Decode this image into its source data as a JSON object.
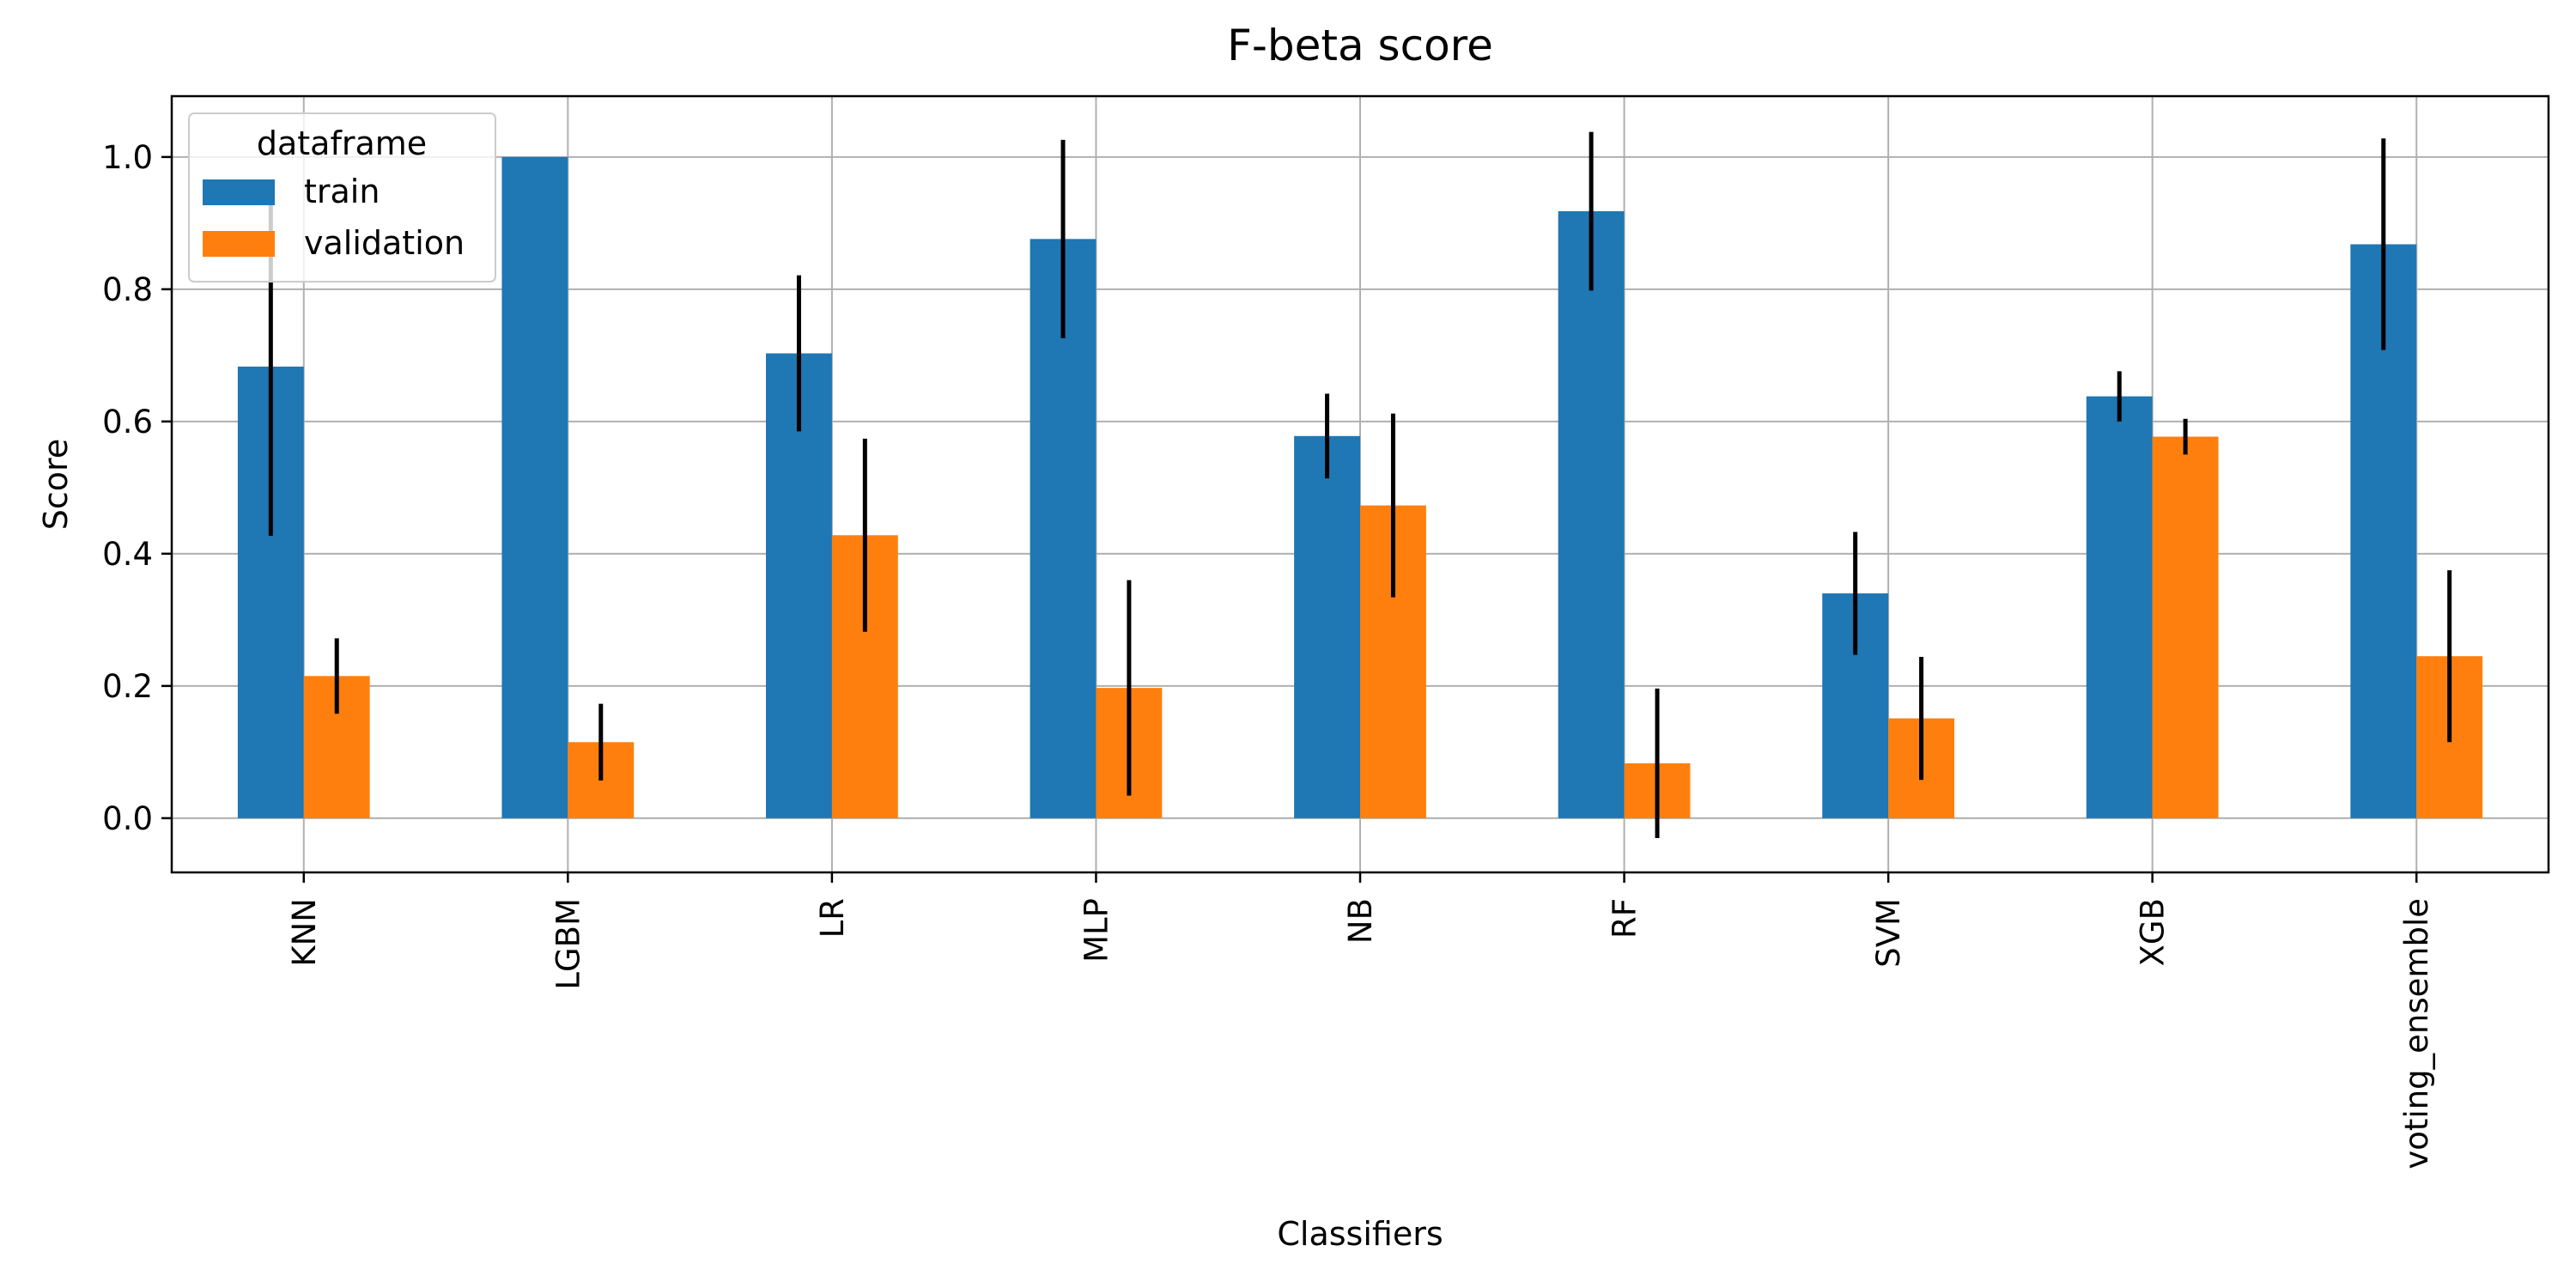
{
  "chart_data": {
    "type": "bar",
    "title": "F-beta score",
    "xlabel": "Classifiers",
    "ylabel": "Score",
    "categories": [
      "KNN",
      "LGBM",
      "LR",
      "MLP",
      "NB",
      "RF",
      "SVM",
      "XGB",
      "voting_ensemble"
    ],
    "series": [
      {
        "name": "train",
        "color": "#1f77b4",
        "values": [
          0.683,
          1.0,
          0.703,
          0.876,
          0.578,
          0.918,
          0.34,
          0.638,
          0.868
        ],
        "error": [
          0.256,
          0.0,
          0.118,
          0.15,
          0.064,
          0.12,
          0.093,
          0.038,
          0.16
        ]
      },
      {
        "name": "validation",
        "color": "#ff7f0e",
        "values": [
          0.215,
          0.115,
          0.428,
          0.197,
          0.473,
          0.083,
          0.151,
          0.577,
          0.245
        ],
        "error": [
          0.057,
          0.058,
          0.146,
          0.163,
          0.139,
          0.113,
          0.093,
          0.027,
          0.13
        ]
      }
    ],
    "yticks": [
      "0.0",
      "0.2",
      "0.4",
      "0.6",
      "0.8",
      "1.0"
    ],
    "ylim": [
      -0.082,
      1.092
    ],
    "grid": true,
    "error_bar_color": "#000000",
    "legend": {
      "title": "dataframe",
      "placement": "top-left"
    }
  }
}
